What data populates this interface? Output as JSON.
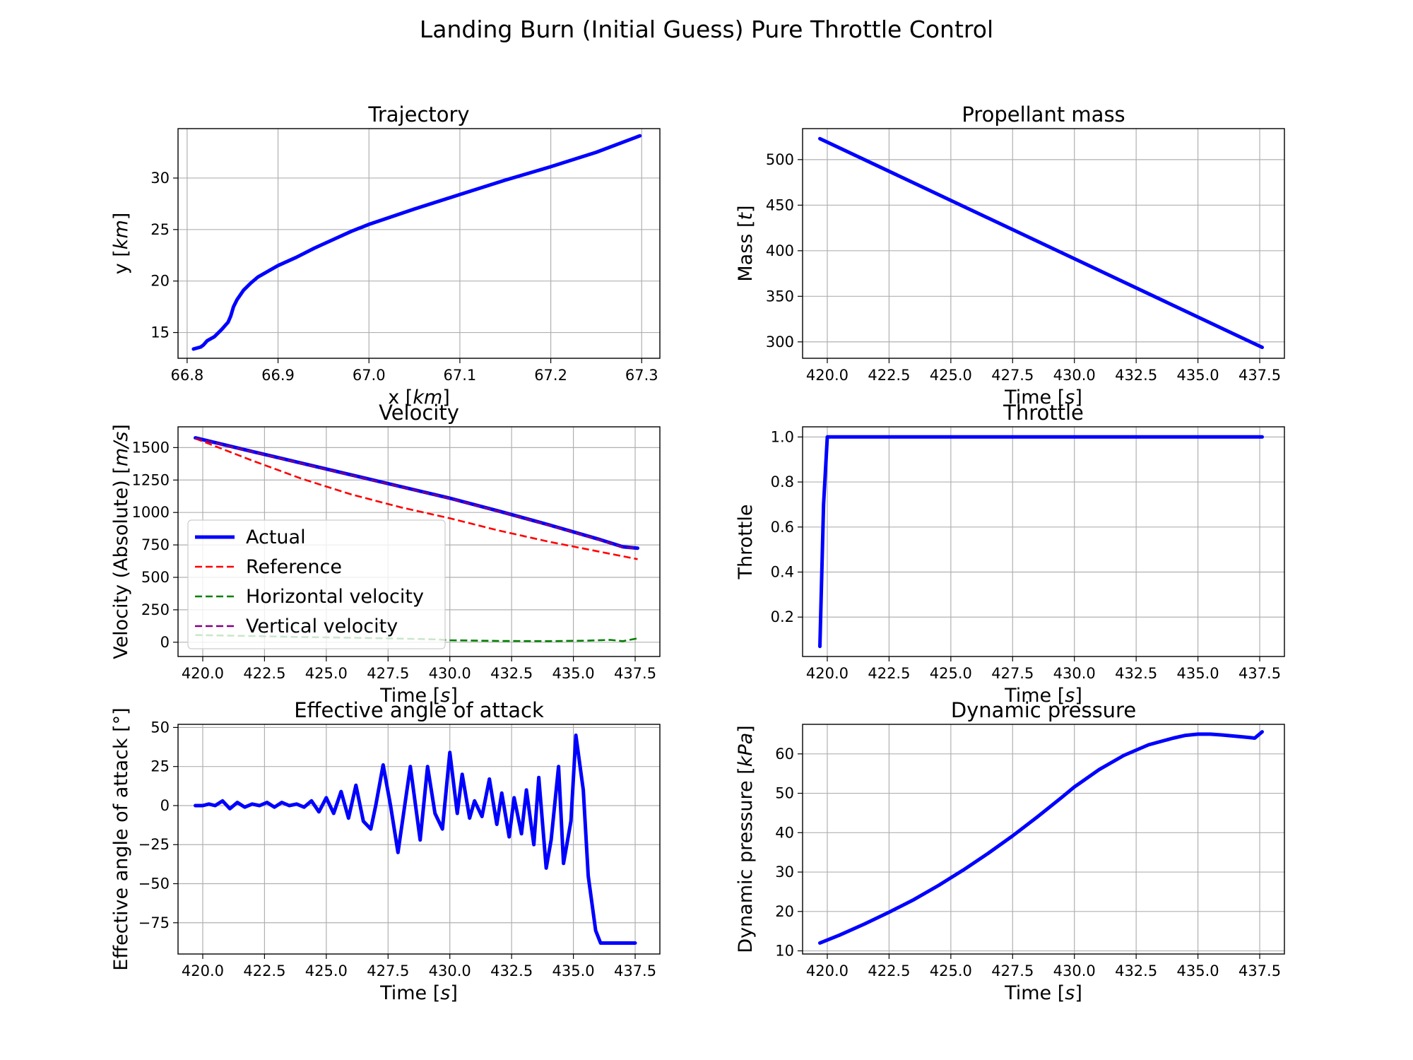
{
  "figure": {
    "title": "Landing Burn (Initial Guess) Pure Throttle Control"
  },
  "chart_data": [
    {
      "id": "trajectory",
      "type": "line",
      "title": "Trajectory",
      "xlabel": "x [km]",
      "ylabel": "y [km]",
      "xlim": [
        66.79,
        67.32
      ],
      "ylim": [
        12.5,
        34.8
      ],
      "xticks": [
        66.8,
        66.9,
        67.0,
        67.1,
        67.2,
        67.3
      ],
      "xtick_labels": [
        "66.8",
        "66.9",
        "67.0",
        "67.1",
        "67.2",
        "67.3"
      ],
      "yticks": [
        15,
        20,
        25,
        30
      ],
      "ytick_labels": [
        "15",
        "20",
        "25",
        "30"
      ],
      "grid": true,
      "series": [
        {
          "color": "#0000ff",
          "style": "solid",
          "x": [
            66.807,
            66.815,
            66.818,
            66.822,
            66.83,
            66.838,
            66.845,
            66.848,
            66.851,
            66.855,
            66.862,
            66.87,
            66.878,
            66.89,
            66.9,
            66.92,
            66.94,
            66.96,
            66.98,
            67.0,
            67.05,
            67.1,
            67.15,
            67.2,
            67.25,
            67.298
          ],
          "y": [
            13.4,
            13.6,
            13.8,
            14.2,
            14.6,
            15.3,
            16.0,
            16.6,
            17.5,
            18.2,
            19.1,
            19.8,
            20.4,
            21.0,
            21.5,
            22.3,
            23.2,
            24.0,
            24.8,
            25.5,
            27.0,
            28.4,
            29.8,
            31.1,
            32.5,
            34.1
          ]
        }
      ]
    },
    {
      "id": "propellant-mass",
      "type": "line",
      "title": "Propellant mass",
      "xlabel": "Time [s]",
      "ylabel": "Mass [t]",
      "xlim": [
        419.0,
        438.5
      ],
      "ylim": [
        282,
        534
      ],
      "xticks": [
        420,
        422.5,
        425,
        427.5,
        430,
        432.5,
        435,
        437.5
      ],
      "xtick_labels": [
        "420.0",
        "422.5",
        "425.0",
        "427.5",
        "430.0",
        "432.5",
        "435.0",
        "437.5"
      ],
      "yticks": [
        300,
        350,
        400,
        450,
        500
      ],
      "ytick_labels": [
        "300",
        "350",
        "400",
        "450",
        "500"
      ],
      "grid": true,
      "series": [
        {
          "color": "#0000ff",
          "style": "solid",
          "x": [
            419.7,
            437.6
          ],
          "y": [
            523,
            294
          ]
        }
      ]
    },
    {
      "id": "velocity",
      "type": "line",
      "title": "Velocity",
      "xlabel": "Time [s]",
      "ylabel": "Velocity (Absolute) [m/s]",
      "xlim": [
        419.0,
        438.5
      ],
      "ylim": [
        -110,
        1660
      ],
      "xticks": [
        420,
        422.5,
        425,
        427.5,
        430,
        432.5,
        435,
        437.5
      ],
      "xtick_labels": [
        "420.0",
        "422.5",
        "425.0",
        "427.5",
        "430.0",
        "432.5",
        "435.0",
        "437.5"
      ],
      "yticks": [
        0,
        250,
        500,
        750,
        1000,
        1250,
        1500
      ],
      "ytick_labels": [
        "0",
        "250",
        "500",
        "750",
        "1000",
        "1250",
        "1500"
      ],
      "grid": true,
      "legend": "center-left",
      "series": [
        {
          "name": "Actual",
          "color": "#0000ff",
          "style": "solid",
          "x": [
            419.7,
            422,
            424,
            426,
            428,
            430,
            432,
            434,
            436,
            437,
            437.6
          ],
          "y": [
            1575,
            1470,
            1380,
            1290,
            1200,
            1110,
            1010,
            905,
            795,
            735,
            725
          ]
        },
        {
          "name": "Reference",
          "color": "#ff0000",
          "style": "dashed",
          "x": [
            419.7,
            422,
            424,
            426,
            428,
            430,
            432,
            434,
            436,
            437.6
          ],
          "y": [
            1570,
            1400,
            1260,
            1140,
            1040,
            955,
            860,
            775,
            700,
            640
          ]
        },
        {
          "name": "Horizontal velocity",
          "color": "#008000",
          "style": "dashed",
          "x": [
            419.7,
            422,
            424,
            426,
            428,
            429.5,
            430,
            432,
            434,
            435.5,
            436.5,
            437.0,
            437.6
          ],
          "y": [
            55,
            48,
            40,
            35,
            28,
            22,
            15,
            10,
            8,
            12,
            18,
            8,
            30
          ]
        },
        {
          "name": "Vertical velocity",
          "color": "#800080",
          "style": "dashed",
          "x": [
            419.7,
            422,
            424,
            426,
            428,
            430,
            432,
            434,
            436,
            437,
            437.6
          ],
          "y": [
            1572,
            1467,
            1377,
            1287,
            1197,
            1107,
            1007,
            902,
            792,
            732,
            722
          ]
        }
      ]
    },
    {
      "id": "throttle",
      "type": "line",
      "title": "Throttle",
      "xlabel": "Time [s]",
      "ylabel": "Throttle",
      "xlim": [
        419.0,
        438.5
      ],
      "ylim": [
        0.025,
        1.045
      ],
      "xticks": [
        420,
        422.5,
        425,
        427.5,
        430,
        432.5,
        435,
        437.5
      ],
      "xtick_labels": [
        "420.0",
        "422.5",
        "425.0",
        "427.5",
        "430.0",
        "432.5",
        "435.0",
        "437.5"
      ],
      "yticks": [
        0.2,
        0.4,
        0.6,
        0.8,
        1.0
      ],
      "ytick_labels": [
        "0.2",
        "0.4",
        "0.6",
        "0.8",
        "1.0"
      ],
      "grid": true,
      "series": [
        {
          "color": "#0000ff",
          "style": "solid",
          "x": [
            419.7,
            419.85,
            420.0,
            437.6
          ],
          "y": [
            0.07,
            0.7,
            1.0,
            1.0
          ]
        }
      ]
    },
    {
      "id": "angle-of-attack",
      "type": "line",
      "title": "Effective angle of attack",
      "xlabel": "Time [s]",
      "ylabel": "Effective angle of attack [°]",
      "xlim": [
        419.0,
        438.5
      ],
      "ylim": [
        -95,
        52
      ],
      "xticks": [
        420,
        422.5,
        425,
        427.5,
        430,
        432.5,
        435,
        437.5
      ],
      "xtick_labels": [
        "420.0",
        "422.5",
        "425.0",
        "427.5",
        "430.0",
        "432.5",
        "435.0",
        "437.5"
      ],
      "yticks": [
        -75,
        -50,
        -25,
        0,
        25,
        50
      ],
      "ytick_labels": [
        "−75",
        "−50",
        "−25",
        "0",
        "25",
        "50"
      ],
      "grid": true,
      "series": [
        {
          "color": "#0000ff",
          "style": "solid",
          "x": [
            419.7,
            420.0,
            420.25,
            420.5,
            420.8,
            421.1,
            421.4,
            421.7,
            422.0,
            422.3,
            422.6,
            422.9,
            423.2,
            423.5,
            423.8,
            424.1,
            424.4,
            424.7,
            425.0,
            425.3,
            425.6,
            425.9,
            426.2,
            426.5,
            426.8,
            427.0,
            427.3,
            427.6,
            427.9,
            428.1,
            428.4,
            428.8,
            429.1,
            429.4,
            429.7,
            430.0,
            430.3,
            430.5,
            430.8,
            431.0,
            431.3,
            431.6,
            431.9,
            432.1,
            432.4,
            432.6,
            432.9,
            433.1,
            433.4,
            433.6,
            433.9,
            434.1,
            434.4,
            434.6,
            434.9,
            435.1,
            435.4,
            435.6,
            435.9,
            436.1,
            436.4,
            436.6,
            436.9,
            437.1,
            437.3,
            437.5
          ],
          "y": [
            0,
            0,
            1,
            0,
            3,
            -2,
            2,
            -1,
            1,
            0,
            2,
            -1,
            2,
            0,
            1,
            -1,
            3,
            -4,
            5,
            -5,
            9,
            -8,
            13,
            -10,
            -15,
            0,
            26,
            0,
            -30,
            -8,
            25,
            -22,
            25,
            -5,
            -15,
            34,
            -5,
            20,
            -8,
            3,
            -7,
            17,
            -12,
            8,
            -20,
            5,
            -18,
            10,
            -25,
            18,
            -40,
            -22,
            25,
            -37,
            -10,
            45,
            10,
            -45,
            -80,
            -88,
            -88,
            -88,
            -88,
            -88,
            -88,
            -88
          ]
        }
      ]
    },
    {
      "id": "dynamic-pressure",
      "type": "line",
      "title": "Dynamic pressure",
      "xlabel": "Time [s]",
      "ylabel": "Dynamic pressure [kPa]",
      "xlim": [
        419.0,
        438.5
      ],
      "ylim": [
        9.2,
        67.5
      ],
      "xticks": [
        420,
        422.5,
        425,
        427.5,
        430,
        432.5,
        435,
        437.5
      ],
      "xtick_labels": [
        "420.0",
        "422.5",
        "425.0",
        "427.5",
        "430.0",
        "432.5",
        "435.0",
        "437.5"
      ],
      "yticks": [
        10,
        20,
        30,
        40,
        50,
        60
      ],
      "ytick_labels": [
        "10",
        "20",
        "30",
        "40",
        "50",
        "60"
      ],
      "grid": true,
      "series": [
        {
          "color": "#0000ff",
          "style": "solid",
          "x": [
            419.7,
            420.5,
            421.5,
            422.5,
            423.5,
            424.5,
            425.5,
            426.5,
            427.5,
            428.5,
            429.5,
            430.0,
            431.0,
            432.0,
            433.0,
            434.0,
            434.5,
            435.0,
            435.5,
            436.0,
            436.5,
            437.0,
            437.3,
            437.6
          ],
          "y": [
            12.0,
            14.0,
            16.8,
            19.8,
            23.0,
            26.6,
            30.5,
            34.7,
            39.2,
            44.0,
            49.0,
            51.6,
            56.0,
            59.6,
            62.3,
            64.0,
            64.7,
            65.0,
            65.0,
            64.8,
            64.5,
            64.2,
            64.0,
            65.6
          ]
        }
      ]
    }
  ]
}
